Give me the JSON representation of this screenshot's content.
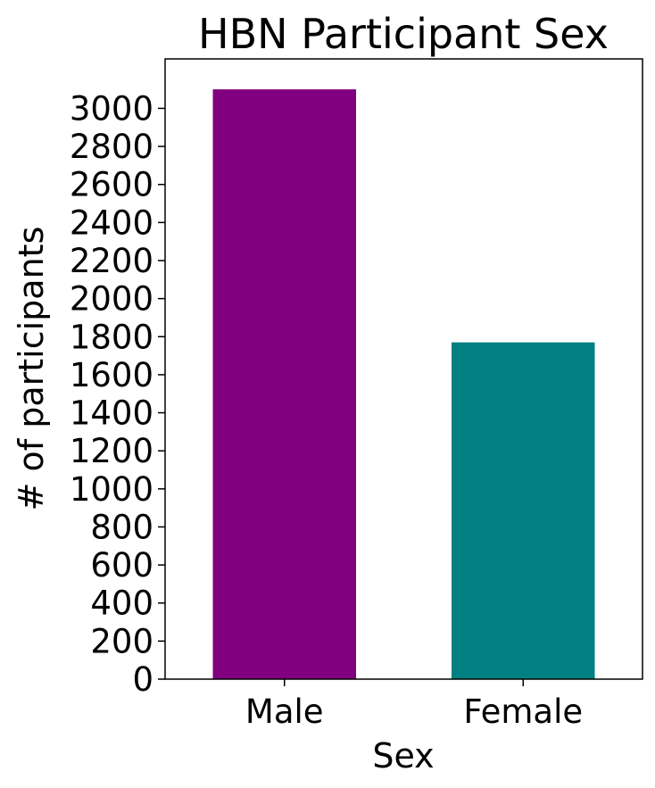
{
  "chart_data": {
    "type": "bar",
    "title": "HBN Participant Sex",
    "xlabel": "Sex",
    "ylabel": "# of participants",
    "categories": [
      "Male",
      "Female"
    ],
    "values": [
      3100,
      1770
    ],
    "colors": [
      "#800080",
      "#008080"
    ],
    "ylim": [
      0,
      3260
    ],
    "yticks": [
      0,
      200,
      400,
      600,
      800,
      1000,
      1200,
      1400,
      1600,
      1800,
      2000,
      2200,
      2400,
      2600,
      2800,
      3000
    ],
    "grid": false,
    "legend": "none"
  }
}
